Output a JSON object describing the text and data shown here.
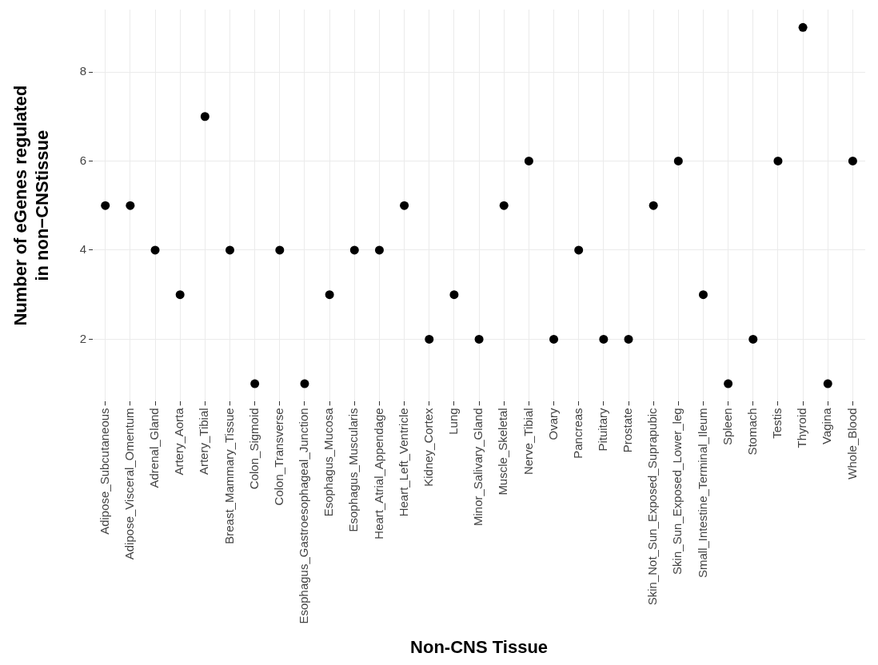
{
  "chart_data": {
    "type": "scatter",
    "xlabel": "Non-CNS Tissue",
    "ylabel": "Number of eGenes regulated in non−CNStissue",
    "categories": [
      "Adipose_Subcutaneous",
      "Adipose_Visceral_Omentum",
      "Adrenal_Gland",
      "Artery_Aorta",
      "Artery_Tibial",
      "Breast_Mammary_Tissue",
      "Colon_Sigmoid",
      "Colon_Transverse",
      "Esophagus_Gastroesophageal_Junction",
      "Esophagus_Mucosa",
      "Esophagus_Muscularis",
      "Heart_Atrial_Appendage",
      "Heart_Left_Ventricle",
      "Kidney_Cortex",
      "Lung",
      "Minor_Salivary_Gland",
      "Muscle_Skeletal",
      "Nerve_Tibial",
      "Ovary",
      "Pancreas",
      "Pituitary",
      "Prostate",
      "Skin_Not_Sun_Exposed_Suprapubic",
      "Skin_Sun_Exposed_Lower_leg",
      "Small_Intestine_Terminal_Ileum",
      "Spleen",
      "Stomach",
      "Testis",
      "Thyroid",
      "Vagina",
      "Whole_Blood"
    ],
    "values": [
      5,
      5,
      4,
      3,
      7,
      4,
      1,
      4,
      1,
      3,
      4,
      4,
      5,
      2,
      3,
      2,
      5,
      6,
      2,
      4,
      2,
      2,
      5,
      6,
      3,
      1,
      2,
      6,
      9,
      1,
      6
    ],
    "color": "#000000",
    "marker": "circle",
    "ylim": [
      0.6,
      9.4
    ],
    "yticks": [
      2,
      4,
      6,
      8
    ],
    "grid": true
  }
}
